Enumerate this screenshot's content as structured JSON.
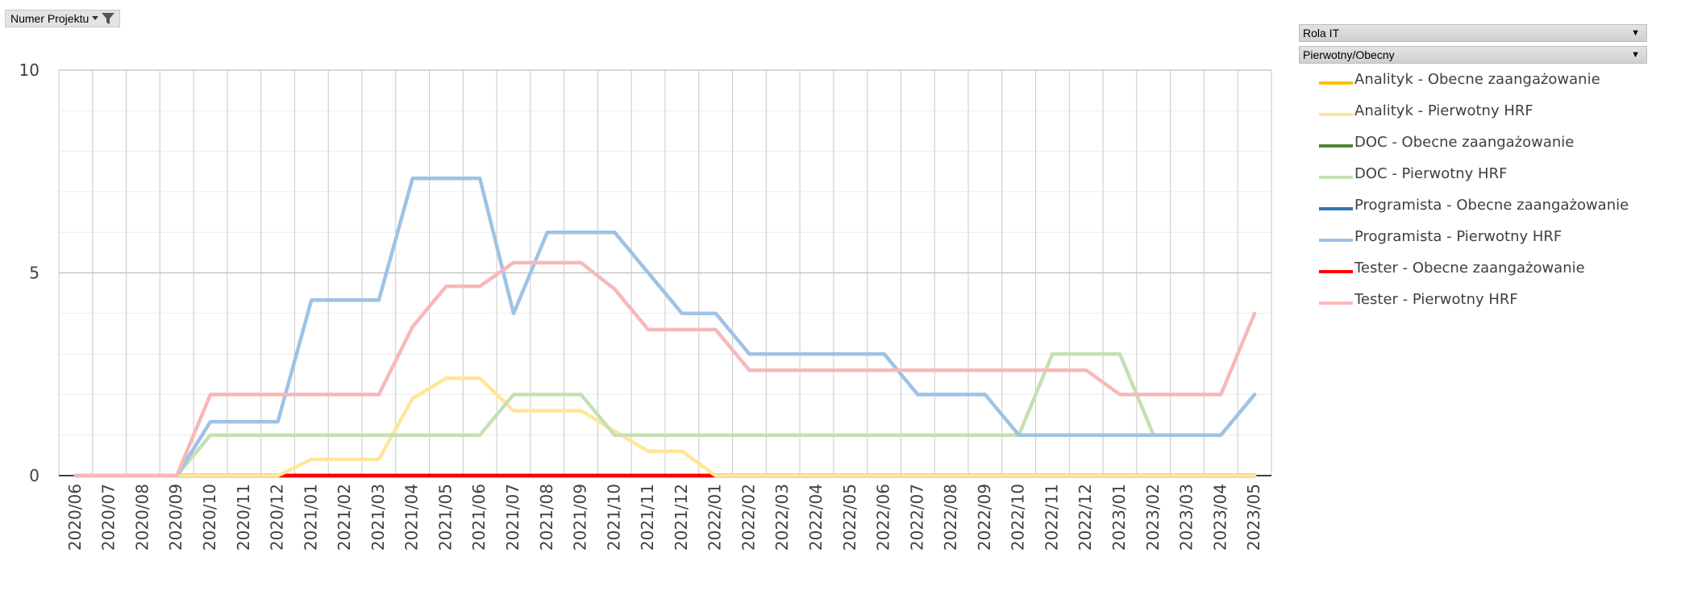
{
  "filter_button": {
    "label": "Numer Projektu",
    "icon": "filter-icon"
  },
  "legend_headers": [
    {
      "label": "Rola IT"
    },
    {
      "label": "Pierwotny/Obecny"
    }
  ],
  "chart_data": {
    "type": "line",
    "title": "",
    "xlabel": "",
    "ylabel": "",
    "ylim": [
      0,
      10
    ],
    "y_ticks": [
      "0",
      "5",
      "10"
    ],
    "grid": true,
    "legend_position": "right",
    "categories": [
      "2020/06",
      "2020/07",
      "2020/08",
      "2020/09",
      "2020/10",
      "2020/11",
      "2020/12",
      "2021/01",
      "2021/02",
      "2021/03",
      "2021/04",
      "2021/05",
      "2021/06",
      "2021/07",
      "2021/08",
      "2021/09",
      "2021/10",
      "2021/11",
      "2021/12",
      "2022/01",
      "2022/02",
      "2022/03",
      "2022/04",
      "2022/05",
      "2022/06",
      "2022/07",
      "2022/08",
      "2022/09",
      "2022/10",
      "2022/11",
      "2022/12",
      "2023/01",
      "2023/02",
      "2023/03",
      "2023/04",
      "2023/05"
    ],
    "series": [
      {
        "name": "Analityk - Obecne zaangażowanie",
        "color": "#ffc000",
        "values": [
          0,
          0,
          0,
          0,
          0,
          0,
          0,
          0,
          0,
          0,
          0,
          0,
          0,
          0,
          0,
          0,
          0,
          0,
          0,
          0,
          0,
          0,
          0,
          0,
          0,
          0,
          0,
          0,
          0,
          0,
          0,
          0,
          0,
          0,
          0,
          0
        ]
      },
      {
        "name": "Analityk - Pierwotny HRF",
        "color": "#ffe699",
        "values": [
          0,
          0,
          0,
          0,
          0,
          0,
          0,
          0.4,
          0.4,
          0.4,
          1.9,
          2.4,
          2.4,
          1.6,
          1.6,
          1.6,
          1.1,
          0.6,
          0.6,
          0,
          0,
          0,
          0,
          0,
          0,
          0,
          0,
          0,
          0,
          0,
          0,
          0,
          0,
          0,
          0,
          0
        ]
      },
      {
        "name": "DOC - Obecne zaangażowanie",
        "color": "#548235",
        "values": [
          0,
          0,
          0,
          0,
          0,
          0,
          0,
          0,
          0,
          0,
          0,
          0,
          0,
          0,
          0,
          0,
          0,
          0,
          0,
          0,
          0,
          0,
          0,
          0,
          0,
          0,
          0,
          0,
          0,
          0,
          0,
          0,
          0,
          0,
          0,
          0
        ]
      },
      {
        "name": "DOC - Pierwotny HRF",
        "color": "#c5e0b4",
        "values": [
          0,
          0,
          0,
          0,
          1,
          1,
          1,
          1,
          1,
          1,
          1,
          1,
          1,
          2,
          2,
          2,
          1,
          1,
          1,
          1,
          1,
          1,
          1,
          1,
          1,
          1,
          1,
          1,
          1,
          3,
          3,
          3,
          1,
          1,
          1,
          2
        ]
      },
      {
        "name": "Programista - Obecne zaangażowanie",
        "color": "#2e75b6",
        "values": [
          0,
          0,
          0,
          0,
          0,
          0,
          0,
          0,
          0,
          0,
          0,
          0,
          0,
          0,
          0,
          0,
          0,
          0,
          0,
          0,
          0,
          0,
          0,
          0,
          0,
          0,
          0,
          0,
          0,
          0,
          0,
          0,
          0,
          0,
          0,
          0
        ]
      },
      {
        "name": "Programista - Pierwotny HRF",
        "color": "#9dc3e6",
        "values": [
          0,
          0,
          0,
          0,
          1.33,
          1.33,
          1.33,
          4.33,
          4.33,
          4.33,
          7.33,
          7.33,
          7.33,
          4,
          6,
          6,
          6,
          5,
          4,
          4,
          3,
          3,
          3,
          3,
          3,
          2,
          2,
          2,
          1,
          1,
          1,
          1,
          1,
          1,
          1,
          2
        ]
      },
      {
        "name": "Tester - Obecne zaangażowanie",
        "color": "#ff0000",
        "values": [
          0,
          0,
          0,
          0,
          0,
          0,
          0,
          0,
          0,
          0,
          0,
          0,
          0,
          0,
          0,
          0,
          0,
          0,
          0,
          0,
          0,
          0,
          0,
          0,
          0,
          0,
          0,
          0,
          0,
          0,
          0,
          0,
          0,
          0,
          0,
          0
        ]
      },
      {
        "name": "Tester - Pierwotny HRF",
        "color": "#f8b8b8",
        "values": [
          0,
          0,
          0,
          0,
          2,
          2,
          2,
          2,
          2,
          2,
          3.67,
          4.67,
          4.67,
          5.25,
          5.25,
          5.25,
          4.6,
          3.6,
          3.6,
          3.6,
          2.6,
          2.6,
          2.6,
          2.6,
          2.6,
          2.6,
          2.6,
          2.6,
          2.6,
          2.6,
          2.6,
          2,
          2,
          2,
          2,
          4
        ]
      }
    ]
  }
}
